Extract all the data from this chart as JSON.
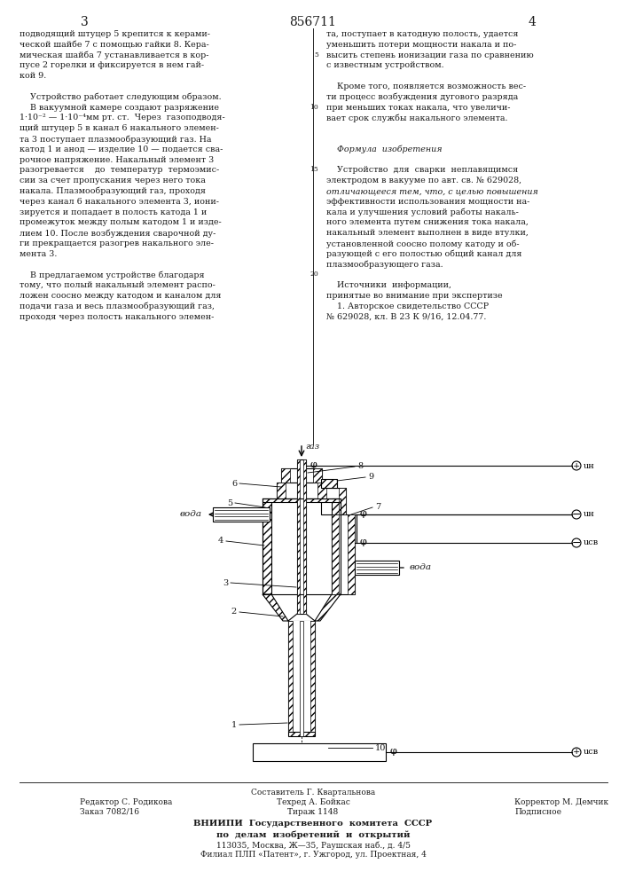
{
  "patent_number": "856711",
  "page_left": "3",
  "page_right": "4",
  "text_left": [
    "подводящий штуцер 5 крепится к керами-",
    "ческой шайбе 7 с помощью гайки 8. Кера-",
    "мическая шайба 7 устанавливается в кор-",
    "пусе 2 горелки и фиксируется в нем гай-",
    "кой 9.",
    "",
    "    Устройство работает следующим образом.",
    "    В вакуумной камере создают разряжение",
    "1·10⁻² — 1·10⁻⁴мм рт. ст.  Через  газоподводя-",
    "щий штуцер 5 в канал 6 накального элемен-",
    "та 3 поступает плазмообразующий газ. На",
    "катод 1 и анод — изделие 10 — подается сва-",
    "рочное напряжение. Накальный элемент 3",
    "разогревается    до  температур  термоэмис-",
    "сии за счет пропускания через него тока",
    "накала. Плазмообразующий газ, проходя",
    "через канал 6 накального элемента 3, иони-",
    "зируется и попадает в полость катода 1 и",
    "промежуток между полым катодом 1 и изде-",
    "лием 10. После возбуждения сварочной ду-",
    "ги прекращается разогрев накального эле-",
    "мента 3.",
    "",
    "    В предлагаемом устройстве благодаря",
    "тому, что полый накальный элемент распо-",
    "ложен соосно между катодом и каналом для",
    "подачи газа и весь плазмообразующий газ,",
    "проходя через полость накального элемен-"
  ],
  "text_right": [
    "та, поступает в катодную полость, удается",
    "уменьшить потери мощности накала и по-",
    "высить степень ионизации газа по сравнению",
    "с известным устройством.",
    "",
    "    Кроме того, появляется возможность вес-",
    "ти процесс возбуждения дугового разряда",
    "при меньших токах накала, что увеличи-",
    "вает срок службы накального элемента.",
    "",
    "",
    "    Формула  изобретения",
    "",
    "    Устройство  для  сварки  неплавящимся",
    "электродом в вакууме по авт. св. № 629028,",
    "отличающееся тем, что, с целью повышения",
    "эффективности использования мощности на-",
    "кала и улучшения условий работы накаль-",
    "ного элемента путем снижения тока накала,",
    "накальный элемент выполнен в виде втулки,",
    "установленной соосно полому катоду и об-",
    "разующей с его полостью общий канал для",
    "плазмообразующего газа.",
    "",
    "    Источники  информации,",
    "принятые во внимание при экспертизе",
    "    1. Авторское свидетельство СССР",
    "№ 629028, кл. В 23 К 9/16, 12.04.77."
  ],
  "footer_composer": "Составитель Г. Квартальнова",
  "footer_editor": "Редактор С. Родикова",
  "footer_tech": "Техред А. Бойкас",
  "footer_corrector": "Корректор М. Демчик",
  "footer_order": "Заказ 7082/16",
  "footer_circulation": "Тираж 1148",
  "footer_signed": "Подписное",
  "footer_org1": "ВНИИПИ  Государственного  комитета  СССР",
  "footer_org2": "по  делам  изобретений  и  открытий",
  "footer_address": "113035, Москва, Ж—35, Раушская наб., д. 4/5",
  "footer_branch": "Филиал ПЛП «Патент», г. Ужгород, ул. Проектная, 4",
  "text_color": "#1a1a1a",
  "line_color": "#2a2a2a"
}
